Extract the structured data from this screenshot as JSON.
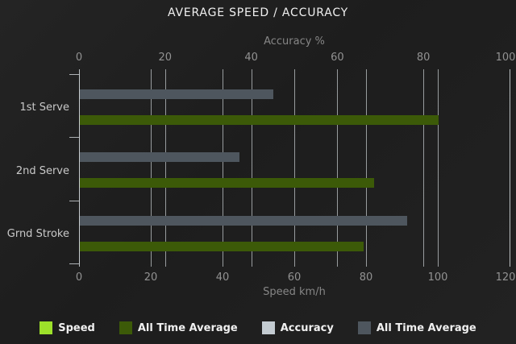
{
  "title": "AVERAGE SPEED / ACCURACY",
  "chart_data": {
    "type": "bar",
    "orientation": "horizontal",
    "title": "AVERAGE SPEED / ACCURACY",
    "categories": [
      "1st Serve",
      "2nd Serve",
      "Grnd Stroke"
    ],
    "series": [
      {
        "name": "Speed",
        "axis": "bottom",
        "color": "#9ce02a",
        "values": [
          null,
          null,
          null
        ]
      },
      {
        "name": "All Time Average",
        "axis": "bottom",
        "color": "#3c5a08",
        "values": [
          100,
          82,
          79
        ]
      },
      {
        "name": "Accuracy",
        "axis": "top",
        "color": "#c3cbd1",
        "values": [
          null,
          null,
          null
        ]
      },
      {
        "name": "All Time Average",
        "axis": "top",
        "color": "#4e565e",
        "values": [
          45,
          37,
          76
        ]
      }
    ],
    "top_axis": {
      "title": "Accuracy %",
      "min": 0,
      "max": 100,
      "ticks": [
        0,
        20,
        40,
        60,
        80,
        100
      ]
    },
    "bottom_axis": {
      "title": "Speed km/h",
      "min": 0,
      "max": 120,
      "ticks": [
        0,
        20,
        40,
        60,
        80,
        100,
        120
      ]
    },
    "grid": true,
    "legend_position": "bottom"
  }
}
